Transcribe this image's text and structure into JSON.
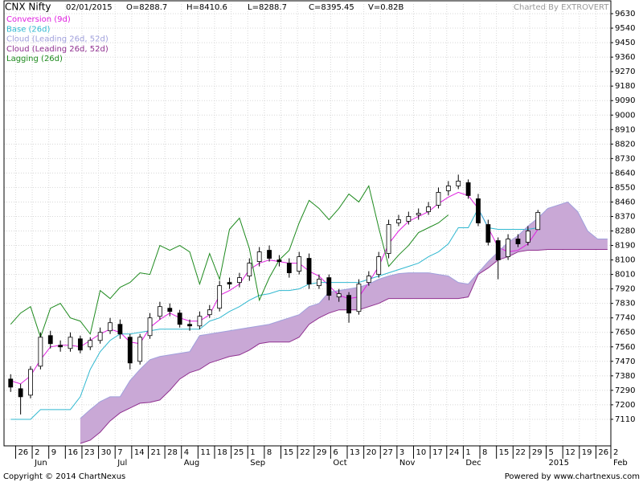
{
  "chart_data": {
    "type": "candlestick",
    "title": "CNX Nifty",
    "header_fields": [
      "02/01/2015",
      "O=8288.7",
      "H=8410.6",
      "L=8288.7",
      "C=8395.45",
      "V=0.82B"
    ],
    "credit": "Charted By EXTROVERT",
    "footer_left": "Copyright © 2014 ChartNexus",
    "footer_right": "Powered by www.chartnexus.com",
    "xlim": [
      0,
      183
    ],
    "ylim": [
      6945,
      9690
    ],
    "grid": true,
    "xticks": [
      {
        "value": 3.5,
        "label": "26"
      },
      {
        "value": 8.5,
        "label": "2"
      },
      {
        "value": 13.5,
        "label": "9"
      },
      {
        "value": 18.5,
        "label": "16"
      },
      {
        "value": 23.5,
        "label": "23"
      },
      {
        "value": 28.5,
        "label": "30"
      },
      {
        "value": 33.5,
        "label": "7"
      },
      {
        "value": 38.5,
        "label": "14"
      },
      {
        "value": 43.5,
        "label": "21"
      },
      {
        "value": 48.5,
        "label": "28"
      },
      {
        "value": 53.5,
        "label": "4"
      },
      {
        "value": 58.5,
        "label": "11"
      },
      {
        "value": 63.5,
        "label": "18"
      },
      {
        "value": 68.5,
        "label": "25"
      },
      {
        "value": 73.5,
        "label": "1"
      },
      {
        "value": 78.5,
        "label": "8"
      },
      {
        "value": 83.5,
        "label": "15"
      },
      {
        "value": 88.5,
        "label": "22"
      },
      {
        "value": 93.5,
        "label": "29"
      },
      {
        "value": 98.5,
        "label": "6"
      },
      {
        "value": 103.5,
        "label": "13"
      },
      {
        "value": 108.5,
        "label": "20"
      },
      {
        "value": 113.5,
        "label": "27"
      },
      {
        "value": 118.5,
        "label": "3"
      },
      {
        "value": 123.5,
        "label": "10"
      },
      {
        "value": 128.5,
        "label": "17"
      },
      {
        "value": 133.5,
        "label": "24"
      },
      {
        "value": 138.5,
        "label": "1"
      },
      {
        "value": 143.5,
        "label": "8"
      },
      {
        "value": 148.5,
        "label": "15"
      },
      {
        "value": 153.5,
        "label": "22"
      },
      {
        "value": 158.5,
        "label": "29"
      },
      {
        "value": 163.5,
        "label": "5"
      },
      {
        "value": 168.5,
        "label": "12"
      },
      {
        "value": 173.5,
        "label": "19"
      },
      {
        "value": 178.5,
        "label": "26"
      },
      {
        "value": 183,
        "label": "2"
      }
    ],
    "month_labels": [
      {
        "value": 8.5,
        "label": "Jun"
      },
      {
        "value": 33.5,
        "label": "Jul"
      },
      {
        "value": 53.5,
        "label": "Aug"
      },
      {
        "value": 73.5,
        "label": "Sep"
      },
      {
        "value": 98.5,
        "label": "Oct"
      },
      {
        "value": 118.5,
        "label": "Nov"
      },
      {
        "value": 138.5,
        "label": "Dec"
      },
      {
        "value": 163.5,
        "label": "2015"
      },
      {
        "value": 183,
        "label": "Feb"
      }
    ],
    "yticks": [
      7110,
      7200,
      7290,
      7380,
      7470,
      7560,
      7650,
      7740,
      7830,
      7920,
      8010,
      8100,
      8190,
      8280,
      8370,
      8460,
      8550,
      8640,
      8730,
      8820,
      8910,
      9000,
      9090,
      9180,
      9270,
      9360,
      9450,
      9540,
      9630
    ],
    "x": [
      2,
      5,
      8,
      11,
      14,
      17,
      20,
      23,
      26,
      29,
      32,
      35,
      38,
      41,
      44,
      47,
      50,
      53,
      56,
      59,
      62,
      65,
      68,
      71,
      74,
      77,
      80,
      83,
      86,
      89,
      92,
      95,
      98,
      101,
      104,
      107,
      110,
      113,
      116,
      119,
      122,
      125,
      128,
      131,
      134,
      137,
      140,
      143,
      146,
      149,
      152,
      155,
      158,
      161,
      164,
      167,
      170,
      173,
      176,
      179,
      182
    ],
    "candles": {
      "up_color": "#ffffff",
      "down_color": "#000000",
      "open": [
        7360,
        7300,
        7260,
        7440,
        7630,
        7570,
        7550,
        7610,
        7560,
        7600,
        7660,
        7700,
        7620,
        7470,
        7630,
        7750,
        7800,
        7770,
        7700,
        7690,
        7760,
        7800,
        7960,
        7960,
        8000,
        8090,
        8160,
        8100,
        8080,
        8030,
        8110,
        7940,
        7990,
        7870,
        7880,
        7780,
        7960,
        8010,
        8140,
        8330,
        8340,
        8380,
        8400,
        8440,
        8530,
        8560,
        8580,
        8480,
        8320,
        8220,
        8120,
        8230,
        8210,
        8288.7,
        null,
        null,
        null,
        null,
        null,
        null,
        null
      ],
      "high": [
        7390,
        7330,
        7440,
        7650,
        7660,
        7600,
        7650,
        7630,
        7620,
        7680,
        7740,
        7730,
        7640,
        7640,
        7770,
        7840,
        7830,
        7790,
        7730,
        7780,
        7820,
        7970,
        7990,
        8020,
        8110,
        8180,
        8190,
        8130,
        8110,
        8150,
        8140,
        8010,
        8010,
        7920,
        7900,
        7980,
        8030,
        8150,
        8350,
        8380,
        8400,
        8420,
        8460,
        8550,
        8590,
        8630,
        8600,
        8510,
        8350,
        8240,
        8260,
        8260,
        8310,
        8410.6,
        null,
        null,
        null,
        null,
        null,
        null,
        null
      ],
      "low": [
        7280,
        7140,
        7240,
        7420,
        7550,
        7530,
        7530,
        7520,
        7540,
        7580,
        7640,
        7610,
        7420,
        7450,
        7610,
        7730,
        7750,
        7680,
        7660,
        7670,
        7740,
        7780,
        7920,
        7930,
        7970,
        8060,
        8090,
        8060,
        7990,
        8010,
        7920,
        7920,
        7850,
        7840,
        7710,
        7760,
        7940,
        7990,
        8110,
        8310,
        8320,
        8350,
        8380,
        8420,
        8500,
        8540,
        8480,
        8310,
        8190,
        7980,
        8100,
        8180,
        8190,
        8288.7,
        null,
        null,
        null,
        null,
        null,
        null,
        null
      ],
      "close": [
        7310,
        7250,
        7420,
        7620,
        7580,
        7560,
        7620,
        7540,
        7600,
        7650,
        7710,
        7640,
        7460,
        7620,
        7740,
        7810,
        7780,
        7700,
        7690,
        7750,
        7790,
        7940,
        7950,
        7990,
        8080,
        8150,
        8110,
        8090,
        8020,
        8120,
        7950,
        7980,
        7880,
        7890,
        7770,
        7950,
        8000,
        8120,
        8320,
        8350,
        8370,
        8390,
        8430,
        8520,
        8560,
        8590,
        8500,
        8330,
        8210,
        8100,
        8230,
        8200,
        8280,
        8395.45,
        null,
        null,
        null,
        null,
        null,
        null,
        null
      ]
    },
    "cloud_fill": "#c9a8d6",
    "series": [
      {
        "name": "Conversion (9d)",
        "color": "#e020e0",
        "values": [
          7350,
          7330,
          7380,
          7480,
          7560,
          7570,
          7570,
          7560,
          7600,
          7640,
          7670,
          7650,
          7590,
          7580,
          7680,
          7730,
          7770,
          7740,
          7720,
          7720,
          7760,
          7880,
          7910,
          7950,
          8040,
          8080,
          8100,
          8090,
          8080,
          8080,
          8030,
          8000,
          7940,
          7880,
          7860,
          7870,
          7960,
          8060,
          8200,
          8280,
          8340,
          8370,
          8400,
          8450,
          8490,
          8520,
          8500,
          8420,
          8300,
          8180,
          8150,
          8160,
          8200,
          8290,
          null,
          null,
          null,
          null,
          null,
          null,
          null
        ]
      },
      {
        "name": "Base (26d)",
        "color": "#30b8d0",
        "values": [
          7110,
          7110,
          7110,
          7170,
          7170,
          7170,
          7170,
          7250,
          7420,
          7530,
          7600,
          7640,
          7640,
          7650,
          7660,
          7670,
          7670,
          7670,
          7670,
          7670,
          7720,
          7740,
          7780,
          7810,
          7850,
          7880,
          7890,
          7910,
          7910,
          7920,
          7950,
          7960,
          7960,
          7960,
          7960,
          7960,
          7980,
          8000,
          8020,
          8040,
          8060,
          8080,
          8120,
          8150,
          8200,
          8300,
          8300,
          8420,
          8300,
          8290,
          8290,
          8290,
          8290,
          8300,
          null,
          null,
          null,
          null,
          null,
          null,
          null
        ]
      },
      {
        "name": "Cloud (Leading 26d, 52d)",
        "color": "#a0a0dc",
        "values": [
          null,
          null,
          null,
          null,
          null,
          null,
          null,
          7115,
          7170,
          7220,
          7250,
          7250,
          7350,
          7420,
          7480,
          7500,
          7510,
          7520,
          7530,
          7630,
          7640,
          7650,
          7660,
          7670,
          7680,
          7690,
          7700,
          7720,
          7740,
          7760,
          7810,
          7830,
          7900,
          7910,
          7920,
          7930,
          7950,
          7980,
          8000,
          8015,
          8020,
          8020,
          8020,
          8010,
          8000,
          7960,
          7950,
          8020,
          8090,
          8150,
          8210,
          8250,
          8310,
          8360,
          8420,
          8440,
          8460,
          8400,
          8280,
          8230,
          8230
        ]
      },
      {
        "name": "Cloud (Leading 26d, 52d)",
        "color": "#903090",
        "values": [
          null,
          null,
          null,
          null,
          null,
          null,
          null,
          6960,
          6980,
          7030,
          7100,
          7150,
          7180,
          7210,
          7215,
          7230,
          7290,
          7360,
          7400,
          7420,
          7460,
          7480,
          7500,
          7510,
          7540,
          7580,
          7590,
          7590,
          7590,
          7620,
          7700,
          7740,
          7770,
          7790,
          7790,
          7790,
          7810,
          7830,
          7860,
          7860,
          7860,
          7860,
          7860,
          7860,
          7860,
          7860,
          7870,
          8010,
          8050,
          8100,
          8120,
          8150,
          8160,
          8160,
          8165,
          8165,
          8165,
          8165,
          8165,
          8165,
          8165
        ]
      },
      {
        "name": "Lagging (26d)",
        "color": "#1e8a1e",
        "values": [
          7700,
          7770,
          7810,
          7620,
          7800,
          7830,
          7740,
          7720,
          7640,
          7910,
          7860,
          7930,
          7960,
          8020,
          8010,
          8190,
          8160,
          8190,
          8150,
          7950,
          8140,
          7980,
          8290,
          8360,
          8170,
          7850,
          7990,
          8100,
          8160,
          8330,
          8470,
          8420,
          8350,
          8420,
          8510,
          8460,
          8560,
          8300,
          8060,
          8130,
          8190,
          8270,
          8300,
          8330,
          8380,
          null,
          null,
          null,
          null,
          null,
          null,
          null,
          null,
          null,
          null,
          null,
          null,
          null,
          null,
          null,
          null
        ]
      }
    ]
  }
}
